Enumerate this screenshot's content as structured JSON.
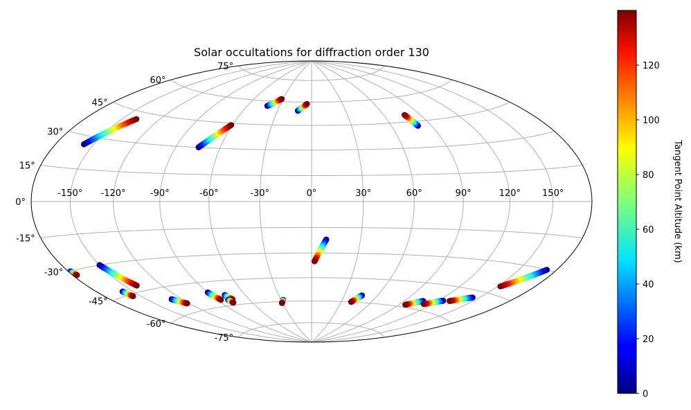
{
  "chart_data": {
    "type": "scatter",
    "projection": "hammer",
    "title": "Solar occultations for diffraction order 130",
    "xlabel": "",
    "ylabel": "",
    "grid": true,
    "longitude_ticks": [
      "-150°",
      "-120°",
      "-90°",
      "-60°",
      "-30°",
      "0°",
      "30°",
      "60°",
      "90°",
      "120°",
      "150°"
    ],
    "longitude_tick_values": [
      -150,
      -120,
      -90,
      -60,
      -30,
      0,
      30,
      60,
      90,
      120,
      150
    ],
    "latitude_ticks": [
      "75°",
      "60°",
      "45°",
      "30°",
      "15°",
      "0°",
      "-15°",
      "-30°",
      "-45°",
      "-60°",
      "-75°"
    ],
    "latitude_tick_values": [
      75,
      60,
      45,
      30,
      15,
      0,
      -15,
      -30,
      -45,
      -60,
      -75
    ],
    "colorbar": {
      "label": "Tangent Point Altitude (km)",
      "colormap": "jet",
      "range": [
        0,
        140
      ],
      "ticks": [
        "0",
        "20",
        "40",
        "60",
        "80",
        "100",
        "120"
      ],
      "tick_values": [
        0,
        20,
        40,
        60,
        80,
        100,
        120
      ]
    },
    "series": [
      {
        "lon_start": -157.5,
        "lat_start": 26.2,
        "lon_end": -138.6,
        "lat_end": 41.3
      },
      {
        "lon_start": -74.5,
        "lat_start": 30.1,
        "lon_end": -60.8,
        "lat_end": 43.9
      },
      {
        "lon_start": -41.5,
        "lat_start": 56.8,
        "lon_end": -31.4,
        "lat_end": 61.7
      },
      {
        "lon_start": -12.1,
        "lat_start": 54.3,
        "lon_end": -4.5,
        "lat_end": 58.8
      },
      {
        "lon_start": 80.0,
        "lat_start": 42.4,
        "lon_end": 77.2,
        "lat_end": 49.2
      },
      {
        "lon_start": -178.0,
        "lat_start": -30.0,
        "lon_end": -176.5,
        "lat_end": -32.0
      },
      {
        "lon_start": -150.0,
        "lat_start": -30.0,
        "lon_end": -140.0,
        "lat_end": -42.0
      },
      {
        "lon_start": -158.5,
        "lat_start": -43.0,
        "lon_end": -156.5,
        "lat_end": -46.0
      },
      {
        "lon_start": -129.0,
        "lat_start": -51.5,
        "lon_end": -122.0,
        "lat_end": -55.0
      },
      {
        "lon_start": -90.0,
        "lat_start": -51.0,
        "lon_end": -86.5,
        "lat_end": -56.0
      },
      {
        "lon_start": -78.0,
        "lat_start": -53.5,
        "lon_end": -75.5,
        "lat_end": -56.5
      },
      {
        "lon_start": -80.0,
        "lat_start": -56.5,
        "lon_end": -78.5,
        "lat_end": -58.5
      },
      {
        "lon_start": -28.0,
        "lat_start": -59.0,
        "lon_end": -30.5,
        "lat_end": -61.0
      },
      {
        "lon_start": 9.0,
        "lat_start": -22.0,
        "lon_end": 2.0,
        "lat_end": -35.0
      },
      {
        "lon_start": 46.0,
        "lat_start": -55.5,
        "lon_end": 40.0,
        "lat_end": -60.0
      },
      {
        "lon_start": 107.0,
        "lat_start": -55.0,
        "lon_end": 96.0,
        "lat_end": -58.5
      },
      {
        "lon_start": 124.0,
        "lat_start": -53.0,
        "lon_end": 112.0,
        "lat_end": -56.5
      },
      {
        "lon_start": 144.0,
        "lat_start": -48.5,
        "lon_end": 130.0,
        "lat_end": -52.5
      },
      {
        "lon_start": 172.0,
        "lat_start": -30.0,
        "lon_end": 152.0,
        "lat_end": -41.0
      }
    ]
  }
}
